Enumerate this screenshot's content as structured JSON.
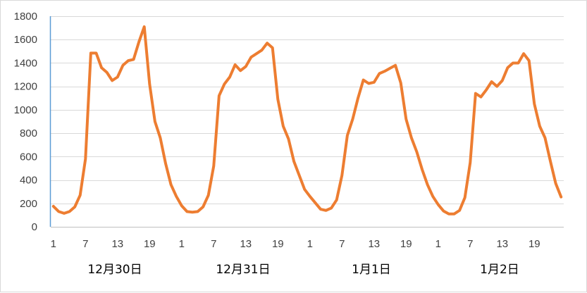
{
  "chart_data": {
    "type": "line",
    "title": "",
    "xlabel": "",
    "ylabel": "",
    "ylim": [
      0,
      1800
    ],
    "yticks": [
      0,
      200,
      400,
      600,
      800,
      1000,
      1200,
      1400,
      1600,
      1800
    ],
    "grid": "horizontal",
    "legend": "none",
    "color": "#ED7D31",
    "x_tick_labels": [
      "1",
      "7",
      "13",
      "19",
      "1",
      "7",
      "13",
      "19",
      "1",
      "7",
      "13",
      "19",
      "1",
      "7",
      "13",
      "19"
    ],
    "group_labels": [
      "12月30日",
      "12月31日",
      "1月1日",
      "1月2日"
    ],
    "series": [
      {
        "values": [
          175,
          130,
          115,
          130,
          170,
          270,
          580,
          1485,
          1485,
          1360,
          1320,
          1250,
          1280,
          1380,
          1420,
          1430,
          1580,
          1710,
          1220,
          900,
          760,
          540,
          360,
          260,
          180,
          130,
          125,
          130,
          170,
          270,
          520,
          1120,
          1220,
          1280,
          1385,
          1335,
          1370,
          1450,
          1480,
          1510,
          1570,
          1530,
          1090,
          860,
          750,
          560,
          440,
          320,
          260,
          205,
          150,
          140,
          160,
          230,
          440,
          780,
          920,
          1100,
          1255,
          1225,
          1235,
          1310,
          1330,
          1355,
          1380,
          1230,
          920,
          760,
          640,
          490,
          360,
          260,
          190,
          135,
          110,
          110,
          140,
          250,
          550,
          1140,
          1110,
          1170,
          1240,
          1200,
          1250,
          1360,
          1400,
          1400,
          1480,
          1420,
          1050,
          860,
          760,
          560,
          370,
          255
        ]
      }
    ]
  }
}
